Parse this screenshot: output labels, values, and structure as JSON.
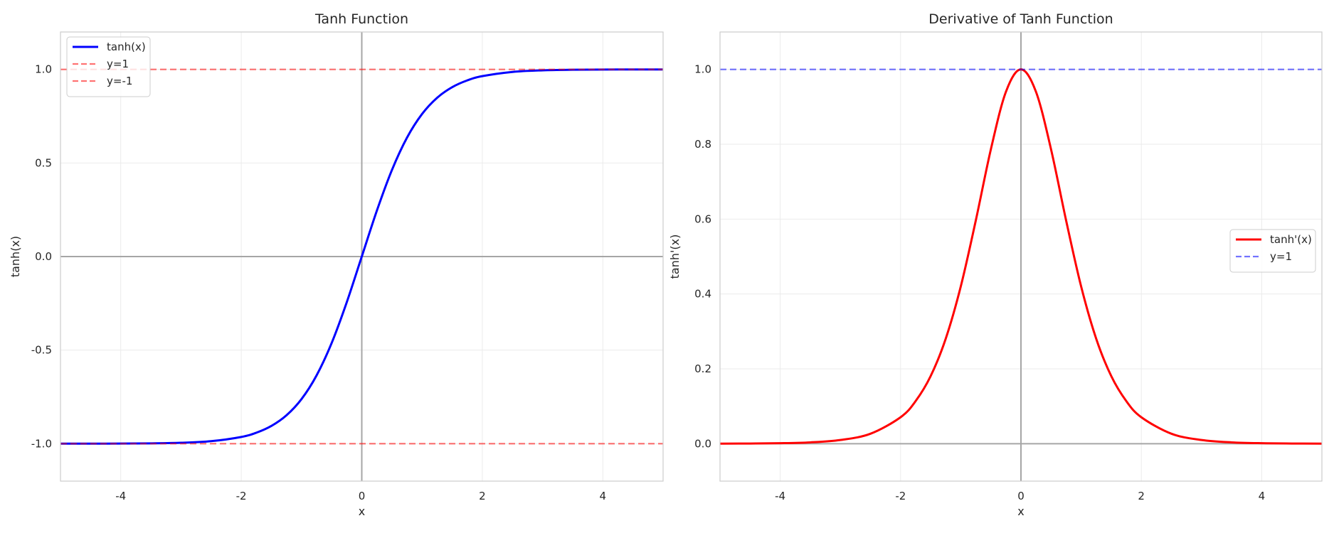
{
  "chart_data": [
    {
      "type": "line",
      "title": "Tanh Function",
      "xlabel": "x",
      "ylabel": "tanh(x)",
      "xlim": [
        -5,
        5
      ],
      "ylim": [
        -1.2,
        1.2
      ],
      "xticks": [
        -4,
        -2,
        0,
        2,
        4
      ],
      "xtick_labels": [
        "-4",
        "-2",
        "0",
        "2",
        "4"
      ],
      "yticks": [
        -1.0,
        -0.5,
        0.0,
        0.5,
        1.0
      ],
      "ytick_labels": [
        "-1.0",
        "-0.5",
        "0.0",
        "0.5",
        "1.0"
      ],
      "grid": true,
      "legend_position": "upper-left",
      "zero_lines": true,
      "series": [
        {
          "name": "tanh(x)",
          "color": "#0000ff",
          "style": "solid",
          "x": [
            -5,
            -4.5,
            -4,
            -3.5,
            -3,
            -2.5,
            -2,
            -1.75,
            -1.5,
            -1.25,
            -1,
            -0.75,
            -0.5,
            -0.25,
            0,
            0.25,
            0.5,
            0.75,
            1,
            1.25,
            1.5,
            1.75,
            2,
            2.5,
            3,
            3.5,
            4,
            4.5,
            5
          ],
          "y": [
            -0.9999,
            -0.9998,
            -0.9993,
            -0.9982,
            -0.9951,
            -0.9866,
            -0.964,
            -0.9414,
            -0.9051,
            -0.8483,
            -0.7616,
            -0.6351,
            -0.4621,
            -0.2449,
            0,
            0.2449,
            0.4621,
            0.6351,
            0.7616,
            0.8483,
            0.9051,
            0.9414,
            0.964,
            0.9866,
            0.9951,
            0.9982,
            0.9993,
            0.9998,
            0.9999
          ]
        },
        {
          "name": "y=1",
          "color": "#ff0000",
          "style": "dashed",
          "x": [
            -5,
            5
          ],
          "y": [
            1,
            1
          ]
        },
        {
          "name": "y=-1",
          "color": "#ff0000",
          "style": "dashed",
          "x": [
            -5,
            5
          ],
          "y": [
            -1,
            -1
          ]
        }
      ]
    },
    {
      "type": "line",
      "title": "Derivative of Tanh Function",
      "xlabel": "x",
      "ylabel": "tanh'(x)",
      "xlim": [
        -5,
        5
      ],
      "ylim": [
        -0.1,
        1.1
      ],
      "xticks": [
        -4,
        -2,
        0,
        2,
        4
      ],
      "xtick_labels": [
        "-4",
        "-2",
        "0",
        "2",
        "4"
      ],
      "yticks": [
        0.0,
        0.2,
        0.4,
        0.6,
        0.8,
        1.0
      ],
      "ytick_labels": [
        "0.0",
        "0.2",
        "0.4",
        "0.6",
        "0.8",
        "1.0"
      ],
      "grid": true,
      "legend_position": "center-right",
      "zero_lines": true,
      "series": [
        {
          "name": "tanh'(x)",
          "color": "#ff0000",
          "style": "solid",
          "x": [
            -5,
            -4.5,
            -4,
            -3.5,
            -3,
            -2.5,
            -2,
            -1.75,
            -1.5,
            -1.25,
            -1,
            -0.75,
            -0.5,
            -0.25,
            0,
            0.25,
            0.5,
            0.75,
            1,
            1.25,
            1.5,
            1.75,
            2,
            2.5,
            3,
            3.5,
            4,
            4.5,
            5
          ],
          "y": [
            0.0002,
            0.0005,
            0.0013,
            0.0036,
            0.0099,
            0.0266,
            0.0707,
            0.1138,
            0.1807,
            0.2805,
            0.42,
            0.5966,
            0.7864,
            0.94,
            1,
            0.94,
            0.7864,
            0.5966,
            0.42,
            0.2805,
            0.1807,
            0.1138,
            0.0707,
            0.0266,
            0.0099,
            0.0036,
            0.0013,
            0.0005,
            0.0002
          ]
        },
        {
          "name": "y=1",
          "color": "#0000ff",
          "style": "dashed",
          "x": [
            -5,
            5
          ],
          "y": [
            1,
            1
          ]
        }
      ]
    }
  ]
}
